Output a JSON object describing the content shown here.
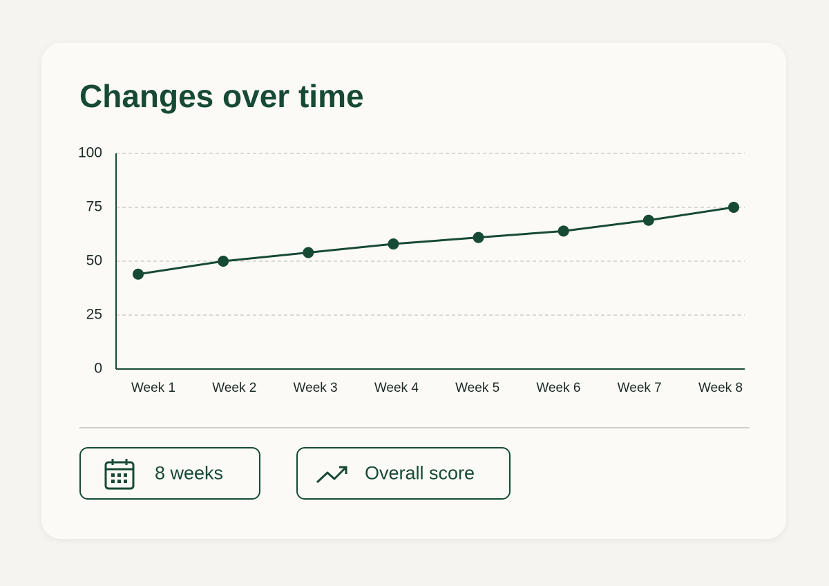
{
  "chart_data": {
    "type": "line",
    "title": "Changes over time",
    "categories": [
      "Week 1",
      "Week 2",
      "Week 3",
      "Week 4",
      "Week 5",
      "Week 6",
      "Week 7",
      "Week 8"
    ],
    "values": [
      44,
      50,
      54,
      58,
      61,
      64,
      69,
      75
    ],
    "color": "#174a33",
    "ylim": [
      0,
      100
    ],
    "yticks": [
      0,
      25,
      50,
      75,
      100
    ],
    "grid": true
  },
  "footer": {
    "chips": [
      "8 weeks",
      "Overall score"
    ]
  }
}
